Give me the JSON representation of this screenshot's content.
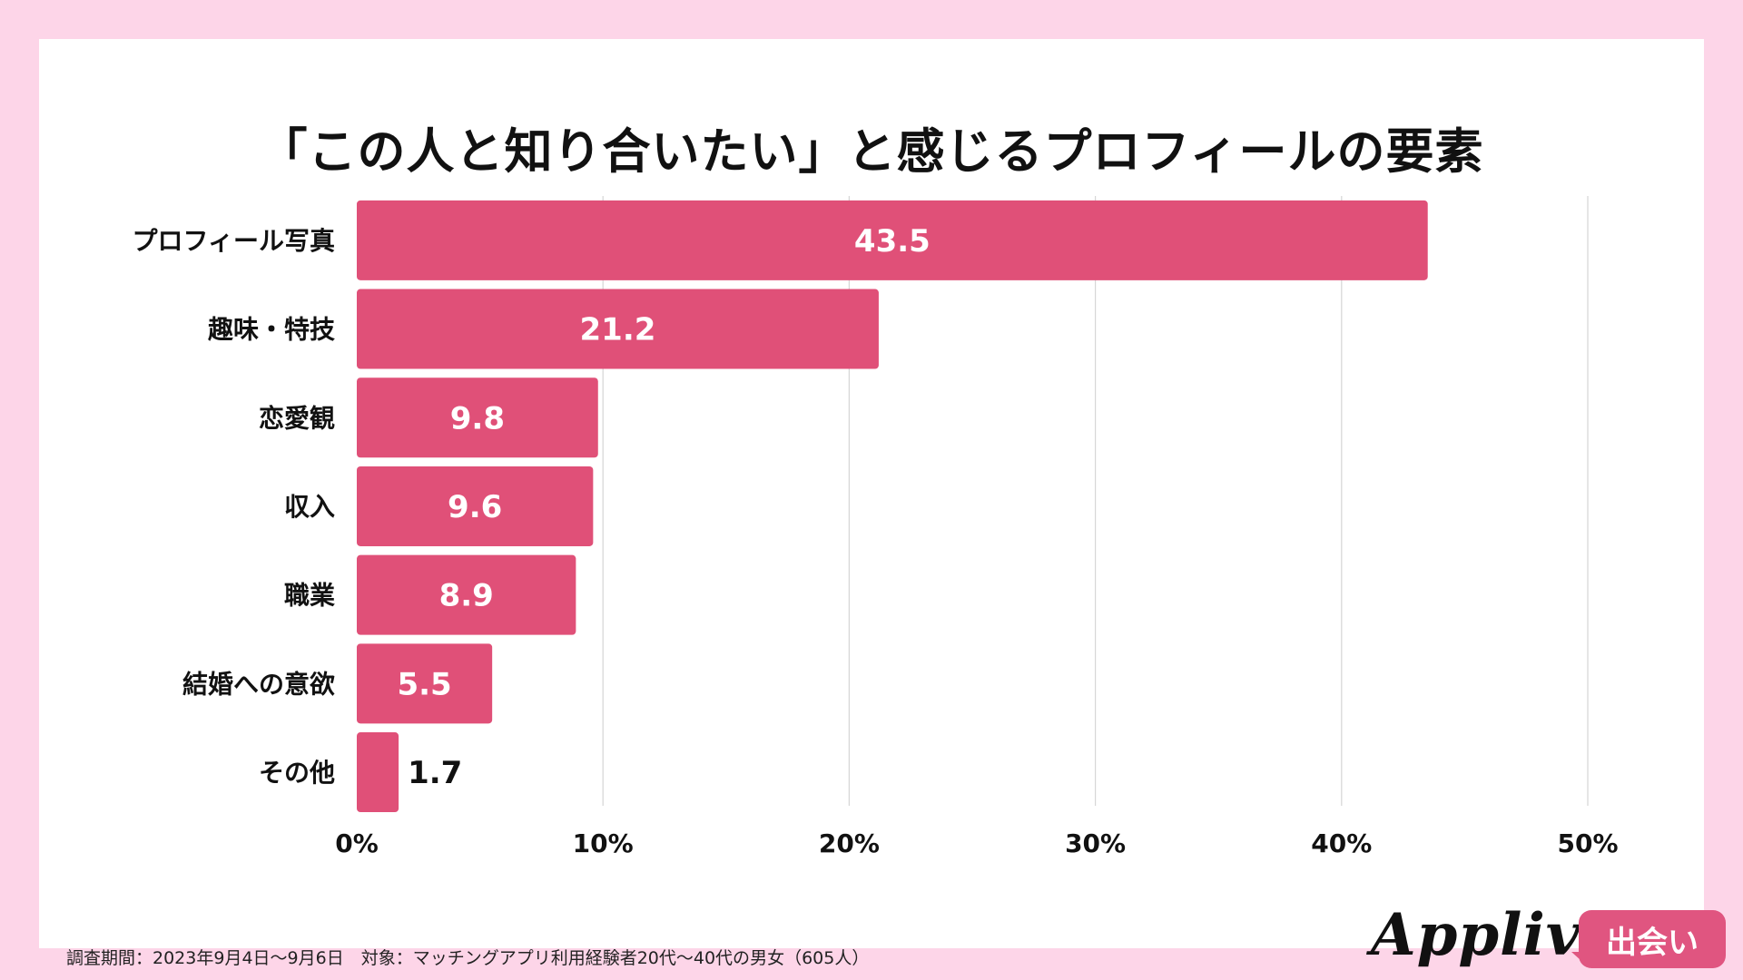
{
  "chart_data": {
    "type": "bar",
    "orientation": "horizontal",
    "title": "「この人と知り合いたい」と感じるプロフィールの要素",
    "categories": [
      "プロフィール写真",
      "趣味・特技",
      "恋愛観",
      "収入",
      "職業",
      "結婚への意欲",
      "その他"
    ],
    "values": [
      43.5,
      21.2,
      9.8,
      9.6,
      8.9,
      5.5,
      1.7
    ],
    "value_labels": [
      "43.5",
      "21.2",
      "9.8",
      "9.6",
      "8.9",
      "5.5",
      "1.7"
    ],
    "xlim": [
      0,
      50
    ],
    "xticks": [
      0,
      10,
      20,
      30,
      40,
      50
    ],
    "xtick_labels": [
      "0%",
      "10%",
      "20%",
      "30%",
      "40%",
      "50%"
    ],
    "xlabel": "",
    "ylabel": "",
    "grid": "vertical",
    "bar_color": "#e05078"
  },
  "footnote": "調査期間：2023年9月4日〜9月6日　対象：マッチングアプリ利用経験者20代〜40代の男女（605人）",
  "logo": {
    "word": "Appliv",
    "badge": "出会い"
  },
  "colors": {
    "background": "#fdd5e8",
    "card": "#ffffff",
    "accent": "#e05580"
  }
}
